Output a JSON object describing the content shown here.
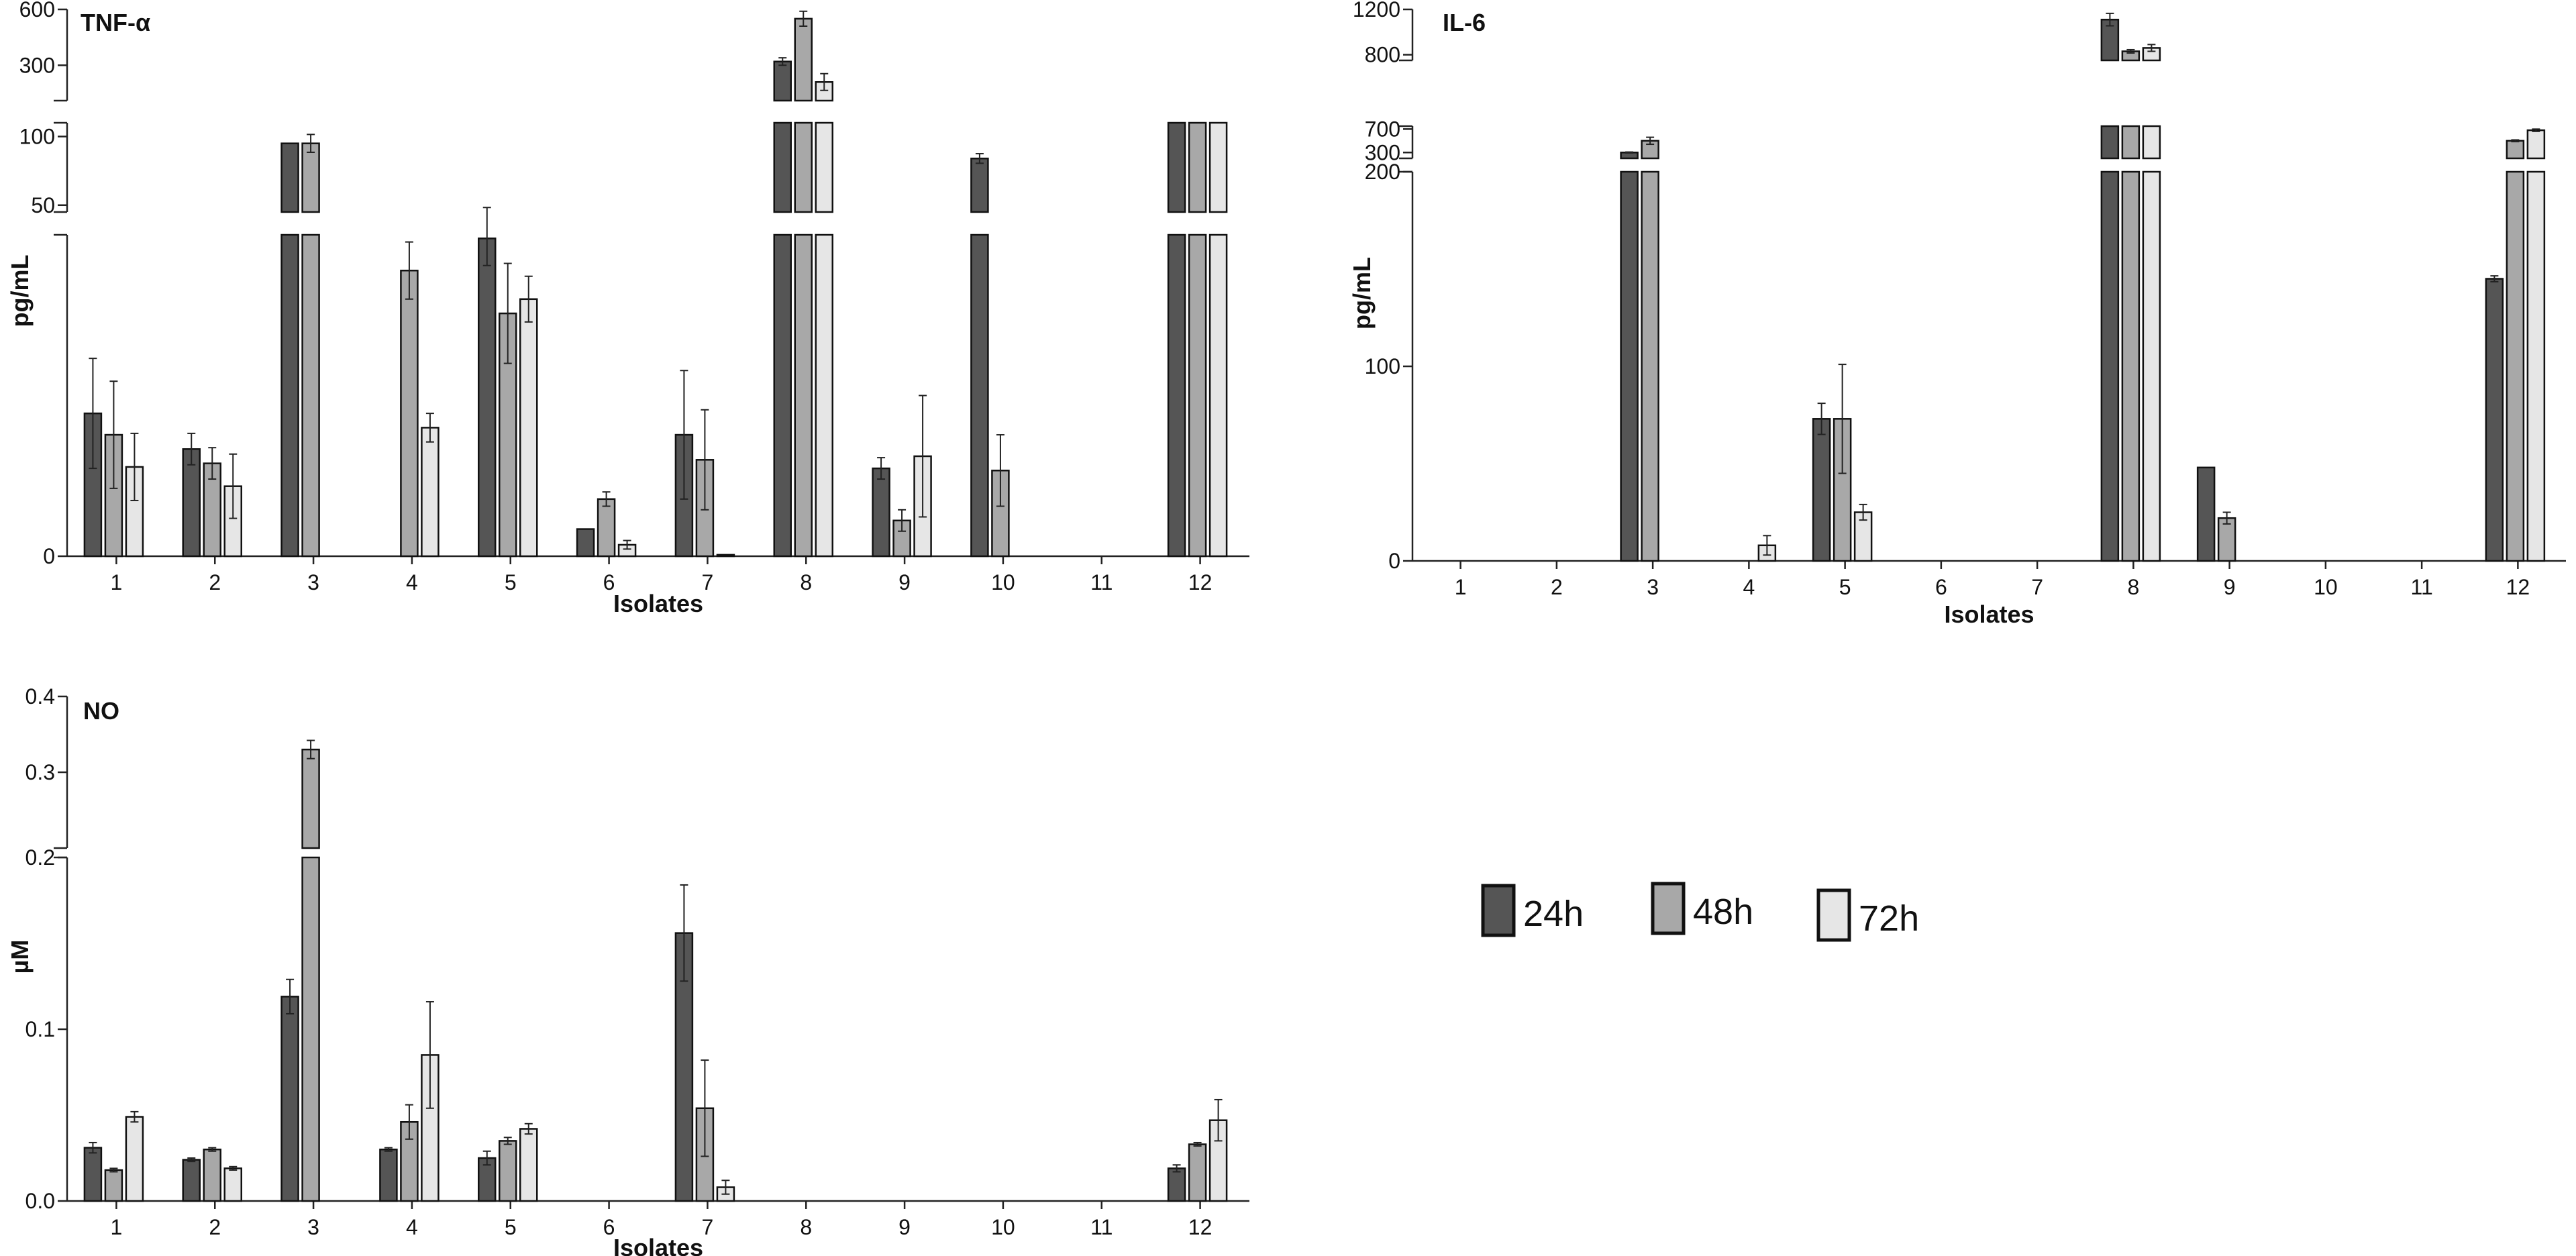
{
  "legend": {
    "items": [
      {
        "label": "24h",
        "color": "#555555"
      },
      {
        "label": "48h",
        "color": "#a8a8a8"
      },
      {
        "label": "72h",
        "color": "#e6e6e6"
      }
    ]
  },
  "chart_data": [
    {
      "id": "tnf",
      "type": "bar",
      "title": "TNF-α",
      "xlabel": "Isolates",
      "ylabel": "pg/mL",
      "categories": [
        "1",
        "2",
        "3",
        "4",
        "5",
        "6",
        "7",
        "8",
        "9",
        "10",
        "11",
        "12"
      ],
      "broken_axis": true,
      "y_segments": [
        {
          "range": [
            0,
            45
          ],
          "ticks": [
            0
          ]
        },
        {
          "range": [
            45,
            110
          ],
          "ticks": [
            50,
            100
          ]
        },
        {
          "range": [
            110,
            600
          ],
          "ticks": [
            300,
            600
          ]
        }
      ],
      "series": [
        {
          "name": "24h",
          "values": [
            20,
            15,
            95,
            0,
            44.5,
            3.8,
            17,
            320,
            12.3,
            84,
            0,
            110
          ],
          "errors": [
            7.7,
            2.2,
            0,
            0,
            3.8,
            0,
            9,
            20,
            1.5,
            3.5,
            0,
            0
          ]
        },
        {
          "name": "48h",
          "values": [
            17,
            13,
            95,
            40,
            34,
            8,
            13.5,
            550,
            5,
            12,
            0,
            110
          ],
          "errors": [
            7.5,
            2.2,
            6.5,
            4,
            7,
            1,
            7,
            40,
            1.5,
            5,
            0,
            0
          ]
        },
        {
          "name": "72h",
          "values": [
            12.5,
            9.8,
            0,
            18,
            36,
            1.6,
            0.2,
            210,
            14,
            0,
            0,
            110
          ],
          "errors": [
            4.7,
            4.5,
            0,
            2,
            3.2,
            0.6,
            0,
            45,
            8.5,
            0,
            0,
            0
          ]
        }
      ]
    },
    {
      "id": "il6",
      "type": "bar",
      "title": "IL-6",
      "xlabel": "Isolates",
      "ylabel": "pg/mL",
      "categories": [
        "1",
        "2",
        "3",
        "4",
        "5",
        "6",
        "7",
        "8",
        "9",
        "10",
        "11",
        "12"
      ],
      "broken_axis": true,
      "y_segments": [
        {
          "range": [
            0,
            200
          ],
          "ticks": [
            0,
            100,
            200
          ]
        },
        {
          "range": [
            200,
            750
          ],
          "ticks": [
            300,
            700
          ]
        },
        {
          "range": [
            750,
            1200
          ],
          "ticks": [
            800,
            1200
          ]
        }
      ],
      "series": [
        {
          "name": "24h",
          "values": [
            0,
            0,
            300,
            0,
            73,
            0,
            0,
            1110,
            48,
            0,
            0,
            145
          ],
          "errors": [
            0,
            0,
            8,
            0,
            8,
            0,
            0,
            55,
            0,
            0,
            0,
            1.5
          ]
        },
        {
          "name": "48h",
          "values": [
            0,
            0,
            500,
            0,
            73,
            0,
            0,
            830,
            22,
            0,
            0,
            500
          ],
          "errors": [
            0,
            0,
            60,
            0,
            28,
            0,
            0,
            15,
            3,
            0,
            0,
            15
          ]
        },
        {
          "name": "72h",
          "values": [
            0,
            0,
            0,
            8,
            25,
            0,
            0,
            860,
            0,
            0,
            0,
            680
          ],
          "errors": [
            0,
            0,
            0,
            5,
            4,
            0,
            0,
            30,
            10,
            0,
            0,
            20
          ]
        }
      ]
    },
    {
      "id": "no",
      "type": "bar",
      "title": "NO",
      "xlabel": "Isolates",
      "ylabel": "µM",
      "categories": [
        "1",
        "2",
        "3",
        "4",
        "5",
        "6",
        "7",
        "8",
        "9",
        "10",
        "11",
        "12"
      ],
      "broken_axis": true,
      "y_segments": [
        {
          "range": [
            0,
            0.2
          ],
          "ticks": [
            0.0,
            0.1,
            0.2
          ]
        },
        {
          "range": [
            0.2,
            0.4
          ],
          "ticks": [
            0.3,
            0.4
          ]
        }
      ],
      "series": [
        {
          "name": "24h",
          "values": [
            0.031,
            0.024,
            0.119,
            0.03,
            0.025,
            0,
            0.156,
            0,
            0,
            0,
            0,
            0.019
          ],
          "errors": [
            0.003,
            0.001,
            0.01,
            0.001,
            0.004,
            0,
            0.028,
            0,
            0,
            0,
            0,
            0.002
          ]
        },
        {
          "name": "48h",
          "values": [
            0.018,
            0.03,
            0.33,
            0.046,
            0.035,
            0,
            0.054,
            0,
            0,
            0,
            0,
            0.033
          ],
          "errors": [
            0.001,
            0.001,
            0.012,
            0.01,
            0.002,
            0,
            0.028,
            0,
            0,
            0,
            0,
            0.001
          ]
        },
        {
          "name": "72h",
          "values": [
            0.049,
            0.019,
            0,
            0.085,
            0.042,
            0,
            0.008,
            0,
            0,
            0,
            0,
            0.047
          ],
          "errors": [
            0.003,
            0.001,
            0,
            0.031,
            0.003,
            0,
            0.004,
            0,
            0,
            0,
            0,
            0.012
          ]
        }
      ]
    }
  ]
}
